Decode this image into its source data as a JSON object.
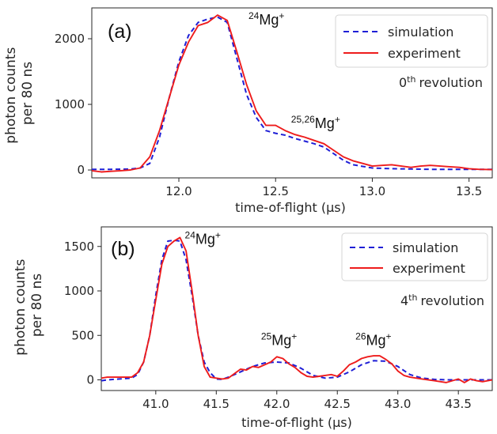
{
  "chart_data": [
    {
      "type": "line",
      "panel_label": "(a)",
      "xlabel": "time-of-flight (μs)",
      "ylabel_line1": "photon counts",
      "ylabel_line2": "per 80 ns",
      "xlim": [
        11.55,
        13.62
      ],
      "ylim": [
        -120,
        2470
      ],
      "xticks": [
        "12.0",
        "12.5",
        "13.0",
        "13.5"
      ],
      "xtick_values": [
        12.0,
        12.5,
        13.0,
        13.5
      ],
      "yticks": [
        "0",
        "1000",
        "2000"
      ],
      "ytick_values": [
        0,
        1000,
        2000
      ],
      "legend": [
        "simulation",
        "experiment"
      ],
      "legend_position": "top-right",
      "revolution": {
        "number": "0",
        "suffix": "th",
        "label": "revolution"
      },
      "annotations": [
        {
          "sup": "24",
          "text": "Mg",
          "charge": "+",
          "x": 12.36,
          "y": 2220
        },
        {
          "sup": "25,26",
          "text": "Mg",
          "charge": "+",
          "x": 12.58,
          "y": 640
        }
      ],
      "series": [
        {
          "name": "simulation",
          "color": "#1f1fd6",
          "style": "dashed",
          "x": [
            11.55,
            11.65,
            11.75,
            11.8,
            11.85,
            11.9,
            11.95,
            12.0,
            12.05,
            12.1,
            12.15,
            12.2,
            12.25,
            12.3,
            12.35,
            12.4,
            12.45,
            12.5,
            12.55,
            12.6,
            12.65,
            12.7,
            12.75,
            12.8,
            12.85,
            12.9,
            13.0,
            13.1,
            13.2,
            13.3,
            13.4,
            13.5,
            13.62
          ],
          "y": [
            10,
            10,
            15,
            30,
            100,
            500,
            1100,
            1650,
            2050,
            2250,
            2300,
            2330,
            2250,
            1700,
            1150,
            800,
            600,
            560,
            530,
            480,
            440,
            400,
            350,
            250,
            150,
            80,
            30,
            20,
            15,
            10,
            10,
            10,
            10
          ]
        },
        {
          "name": "experiment",
          "color": "#ee1c1c",
          "style": "solid",
          "x": [
            11.55,
            11.6,
            11.65,
            11.7,
            11.75,
            11.8,
            11.85,
            11.9,
            11.95,
            12.0,
            12.05,
            12.1,
            12.15,
            12.2,
            12.25,
            12.3,
            12.35,
            12.4,
            12.45,
            12.5,
            12.55,
            12.6,
            12.65,
            12.7,
            12.75,
            12.8,
            12.85,
            12.9,
            12.95,
            13.0,
            13.05,
            13.1,
            13.15,
            13.2,
            13.25,
            13.3,
            13.35,
            13.4,
            13.45,
            13.5,
            13.55,
            13.62
          ],
          "y": [
            -10,
            -30,
            -20,
            -10,
            0,
            30,
            200,
            600,
            1100,
            1600,
            1950,
            2200,
            2250,
            2360,
            2280,
            1800,
            1300,
            900,
            680,
            680,
            600,
            540,
            500,
            450,
            400,
            300,
            200,
            140,
            100,
            60,
            70,
            80,
            60,
            40,
            60,
            70,
            60,
            50,
            40,
            20,
            10,
            5
          ]
        }
      ]
    },
    {
      "type": "line",
      "panel_label": "(b)",
      "xlabel": "time-of-flight (μs)",
      "ylabel_line1": "photon counts",
      "ylabel_line2": "per 80 ns",
      "xlim": [
        40.55,
        43.78
      ],
      "ylim": [
        -120,
        1720
      ],
      "xticks": [
        "41.0",
        "41.5",
        "42.0",
        "42.5",
        "43.0",
        "43.5"
      ],
      "xtick_values": [
        41.0,
        41.5,
        42.0,
        42.5,
        43.0,
        43.5
      ],
      "yticks": [
        "0",
        "500",
        "1000",
        "1500"
      ],
      "ytick_values": [
        0,
        500,
        1000,
        1500
      ],
      "legend": [
        "simulation",
        "experiment"
      ],
      "legend_position": "top-right",
      "revolution": {
        "number": "4",
        "suffix": "th",
        "label": "revolution"
      },
      "annotations": [
        {
          "sup": "24",
          "text": "Mg",
          "charge": "+",
          "x": 41.24,
          "y": 1530
        },
        {
          "sup": "25",
          "text": "Mg",
          "charge": "+",
          "x": 41.87,
          "y": 390
        },
        {
          "sup": "26",
          "text": "Mg",
          "charge": "+",
          "x": 42.65,
          "y": 390
        }
      ],
      "series": [
        {
          "name": "simulation",
          "color": "#1f1fd6",
          "style": "dashed",
          "x": [
            40.55,
            40.6,
            40.7,
            40.8,
            40.85,
            40.9,
            40.95,
            41.0,
            41.05,
            41.1,
            41.15,
            41.2,
            41.25,
            41.3,
            41.35,
            41.4,
            41.45,
            41.5,
            41.55,
            41.6,
            41.65,
            41.7,
            41.8,
            41.9,
            42.0,
            42.1,
            42.2,
            42.3,
            42.4,
            42.5,
            42.6,
            42.7,
            42.8,
            42.9,
            43.0,
            43.1,
            43.2,
            43.3,
            43.4,
            43.5,
            43.6,
            43.78
          ],
          "y": [
            -10,
            0,
            10,
            20,
            60,
            200,
            500,
            950,
            1350,
            1560,
            1570,
            1560,
            1350,
            950,
            500,
            200,
            80,
            10,
            5,
            30,
            60,
            90,
            150,
            190,
            200,
            190,
            130,
            50,
            20,
            30,
            90,
            170,
            215,
            210,
            150,
            60,
            20,
            5,
            0,
            0,
            0,
            0
          ]
        },
        {
          "name": "experiment",
          "color": "#ee1c1c",
          "style": "solid",
          "x": [
            40.55,
            40.6,
            40.7,
            40.8,
            40.85,
            40.9,
            40.95,
            41.0,
            41.05,
            41.1,
            41.15,
            41.2,
            41.25,
            41.3,
            41.35,
            41.4,
            41.45,
            41.5,
            41.55,
            41.6,
            41.65,
            41.7,
            41.75,
            41.8,
            41.85,
            41.9,
            41.95,
            42.0,
            42.05,
            42.1,
            42.15,
            42.2,
            42.25,
            42.3,
            42.35,
            42.4,
            42.45,
            42.5,
            42.55,
            42.6,
            42.65,
            42.7,
            42.75,
            42.8,
            42.85,
            42.9,
            42.95,
            43.0,
            43.05,
            43.1,
            43.2,
            43.3,
            43.4,
            43.5,
            43.55,
            43.6,
            43.65,
            43.7,
            43.78
          ],
          "y": [
            20,
            30,
            30,
            30,
            80,
            200,
            500,
            900,
            1300,
            1500,
            1560,
            1600,
            1450,
            1000,
            500,
            150,
            30,
            20,
            10,
            20,
            70,
            120,
            110,
            150,
            140,
            170,
            200,
            260,
            240,
            180,
            140,
            80,
            40,
            30,
            40,
            50,
            60,
            40,
            100,
            170,
            200,
            240,
            260,
            270,
            270,
            230,
            180,
            100,
            50,
            30,
            10,
            -10,
            -30,
            10,
            -30,
            10,
            -10,
            -20,
            0
          ]
        }
      ]
    }
  ]
}
